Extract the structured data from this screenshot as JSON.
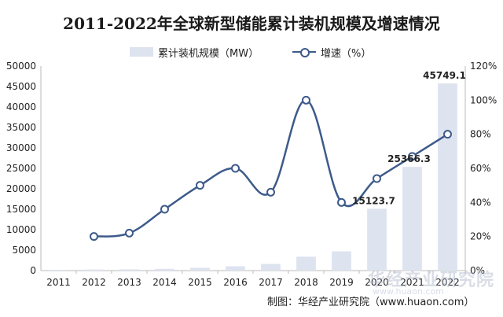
{
  "chart_data": {
    "type": "bar",
    "title": "2011-2022年全球新型储能累计装机规模及增速情况",
    "categories": [
      "2011",
      "2012",
      "2013",
      "2014",
      "2015",
      "2016",
      "2017",
      "2018",
      "2019",
      "2020",
      "2021",
      "2022"
    ],
    "series": [
      {
        "name": "累计装机规模（MW）",
        "type": "bar",
        "axis": "left",
        "values": [
          200,
          250,
          300,
          430,
          680,
          1050,
          1620,
          3400,
          4700,
          15123.7,
          25366.3,
          45749.1
        ]
      },
      {
        "name": "增速（%）",
        "type": "line",
        "axis": "right",
        "values": [
          null,
          20,
          22,
          36,
          50,
          60,
          46,
          100,
          40,
          54,
          67,
          80
        ]
      }
    ],
    "data_labels": {
      "2020": "15123.7",
      "2021": "25366.3",
      "2022": "45749.1"
    },
    "y_left": {
      "min": 0,
      "max": 50000,
      "ticks": [
        "0",
        "5000",
        "10000",
        "15000",
        "20000",
        "25000",
        "30000",
        "35000",
        "40000",
        "45000",
        "50000"
      ]
    },
    "y_right": {
      "min": 0,
      "max": 120,
      "ticks": [
        "0%",
        "20%",
        "40%",
        "60%",
        "80%",
        "100%",
        "120%"
      ]
    },
    "bar_color": "#dde3ef",
    "line_color": "#3d5a8a",
    "legend_position": "top"
  },
  "source": "制图：华经产业研究院（www.huaon.com）",
  "watermark": "华经产业研究院",
  "watermark_sub": "www.huaon.com"
}
